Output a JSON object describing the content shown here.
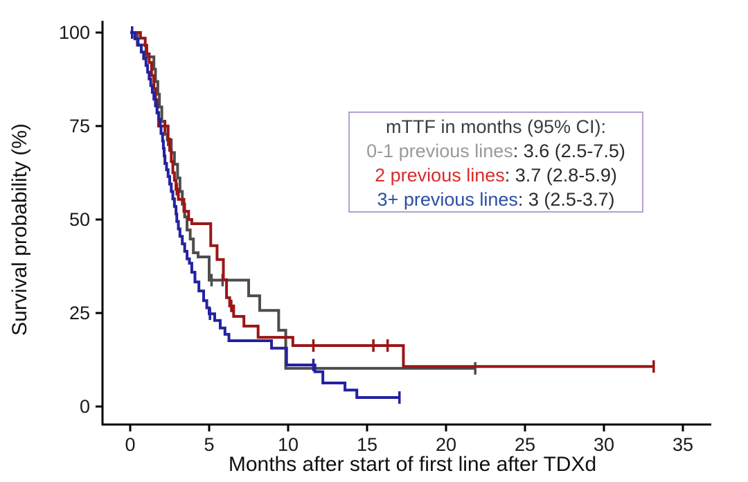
{
  "figure": {
    "background": "#ffffff",
    "axis_color": "#000000",
    "tick_label_color": "#1a1a1a"
  },
  "chart_data": {
    "type": "line",
    "subtype": "kaplan-meier-step-survival",
    "title": "",
    "xlabel": "Months after start of first line after TDXd",
    "ylabel": "Survival probability (%)",
    "xlim": [
      -1.75,
      36.8
    ],
    "ylim": [
      0,
      104
    ],
    "x_ticks": [
      0,
      5,
      10,
      15,
      20,
      25,
      30,
      35
    ],
    "y_ticks": [
      0,
      25,
      50,
      75,
      100
    ],
    "grid": false,
    "legend": {
      "title": "mTTF in months (95% CI):",
      "position": "upper-right-inside",
      "border_color": "#b4a1d1",
      "entries": [
        {
          "label": "0-1 previous lines",
          "value": ": 3.6 (2.5-7.5)",
          "color": "#9a9a9a"
        },
        {
          "label": "2 previous lines",
          "value": ": 3.7 (2.8-5.9)",
          "color": "#d92b2b"
        },
        {
          "label": "3+ previous lines",
          "value": ": 3 (2.5-3.7)",
          "color": "#2b4ea3"
        }
      ]
    },
    "series": [
      {
        "name": "0-1 previous lines",
        "color": "#4d4d4d",
        "median_ttf_months": "3.6 (2.5-7.5)",
        "points": [
          [
            0,
            100
          ],
          [
            0.45,
            96.7
          ],
          [
            1.0,
            93.5
          ],
          [
            1.5,
            90.2
          ],
          [
            1.6,
            86.9
          ],
          [
            1.75,
            83.5
          ],
          [
            1.85,
            80.1
          ],
          [
            2.0,
            76.2
          ],
          [
            2.2,
            72.8
          ],
          [
            2.35,
            71.3
          ],
          [
            2.6,
            67.9
          ],
          [
            2.8,
            64.8
          ],
          [
            3.0,
            61.1
          ],
          [
            3.15,
            57.5
          ],
          [
            3.3,
            54.1
          ],
          [
            3.45,
            50.7
          ],
          [
            3.6,
            47.2
          ],
          [
            3.8,
            44.8
          ],
          [
            4.0,
            41.1
          ],
          [
            4.3,
            40.0
          ],
          [
            5.0,
            33.8
          ],
          [
            7.5,
            29.6
          ],
          [
            8.2,
            25.7
          ],
          [
            9.4,
            20.4
          ],
          [
            9.85,
            10.2
          ],
          [
            21.9,
            10.2
          ]
        ],
        "censors": [
          [
            2.4,
            71.3
          ],
          [
            5.15,
            33.8
          ],
          [
            5.85,
            33.8
          ],
          [
            21.85,
            10.2
          ]
        ]
      },
      {
        "name": "2 previous lines",
        "color": "#9a1616",
        "median_ttf_months": "3.7 (2.8-5.9)",
        "points": [
          [
            0,
            100
          ],
          [
            0.65,
            98.5
          ],
          [
            0.95,
            96.5
          ],
          [
            1.05,
            94.3
          ],
          [
            1.2,
            92.0
          ],
          [
            1.35,
            88.5
          ],
          [
            1.5,
            85.0
          ],
          [
            1.6,
            82.0
          ],
          [
            1.7,
            78.5
          ],
          [
            1.8,
            75.0
          ],
          [
            2.4,
            71.5
          ],
          [
            2.5,
            68.5
          ],
          [
            2.6,
            65.5
          ],
          [
            2.7,
            62.5
          ],
          [
            2.8,
            60.5
          ],
          [
            2.9,
            58.1
          ],
          [
            3.05,
            55.4
          ],
          [
            3.4,
            52.2
          ],
          [
            3.7,
            50.0
          ],
          [
            3.9,
            48.9
          ],
          [
            5.1,
            43.0
          ],
          [
            5.5,
            39.3
          ],
          [
            5.9,
            33.9
          ],
          [
            6.1,
            29.1
          ],
          [
            6.3,
            26.9
          ],
          [
            6.55,
            24.1
          ],
          [
            7.2,
            21.5
          ],
          [
            8.1,
            18.5
          ],
          [
            10.3,
            16.3
          ],
          [
            17.3,
            10.7
          ],
          [
            33.2,
            10.7
          ]
        ],
        "censors": [
          [
            2.2,
            75.0
          ],
          [
            2.95,
            58.1
          ],
          [
            6.4,
            26.9
          ],
          [
            11.6,
            16.3
          ],
          [
            15.4,
            16.3
          ],
          [
            16.3,
            16.3
          ],
          [
            33.15,
            10.7
          ]
        ]
      },
      {
        "name": "3+ previous lines",
        "color": "#2222a0",
        "median_ttf_months": "3 (2.5-3.7)",
        "points": [
          [
            0,
            100
          ],
          [
            0.3,
            98.3
          ],
          [
            0.5,
            96.6
          ],
          [
            0.7,
            94.8
          ],
          [
            0.85,
            93.0
          ],
          [
            1.0,
            91.2
          ],
          [
            1.1,
            89.4
          ],
          [
            1.2,
            87.6
          ],
          [
            1.3,
            85.8
          ],
          [
            1.4,
            84.0
          ],
          [
            1.5,
            82.2
          ],
          [
            1.6,
            80.4
          ],
          [
            1.7,
            78.6
          ],
          [
            1.8,
            76.8
          ],
          [
            1.9,
            75.0
          ],
          [
            1.95,
            73.0
          ],
          [
            2.05,
            71.0
          ],
          [
            2.1,
            69.0
          ],
          [
            2.15,
            67.0
          ],
          [
            2.2,
            65.0
          ],
          [
            2.3,
            63.3
          ],
          [
            2.4,
            61.5
          ],
          [
            2.5,
            59.5
          ],
          [
            2.6,
            57.5
          ],
          [
            2.7,
            55.5
          ],
          [
            2.8,
            53.5
          ],
          [
            2.9,
            51.5
          ],
          [
            2.95,
            49.5
          ],
          [
            3.05,
            47.5
          ],
          [
            3.15,
            45.5
          ],
          [
            3.3,
            43.5
          ],
          [
            3.45,
            41.5
          ],
          [
            3.6,
            39.5
          ],
          [
            3.75,
            38.3
          ],
          [
            3.9,
            35.9
          ],
          [
            4.1,
            33.3
          ],
          [
            4.35,
            30.9
          ],
          [
            4.65,
            28.3
          ],
          [
            4.85,
            26.4
          ],
          [
            5.0,
            24.8
          ],
          [
            5.35,
            23.0
          ],
          [
            5.7,
            21.0
          ],
          [
            6.0,
            19.3
          ],
          [
            6.25,
            17.6
          ],
          [
            8.95,
            15.6
          ],
          [
            9.9,
            11.1
          ],
          [
            11.7,
            9.3
          ],
          [
            12.2,
            6.3
          ],
          [
            13.6,
            4.4
          ],
          [
            14.35,
            2.4
          ],
          [
            17.1,
            2.4
          ]
        ],
        "censors": [
          [
            0.12,
            100
          ],
          [
            5.05,
            24.8
          ],
          [
            11.6,
            11.1
          ],
          [
            17.05,
            2.4
          ]
        ]
      }
    ]
  }
}
